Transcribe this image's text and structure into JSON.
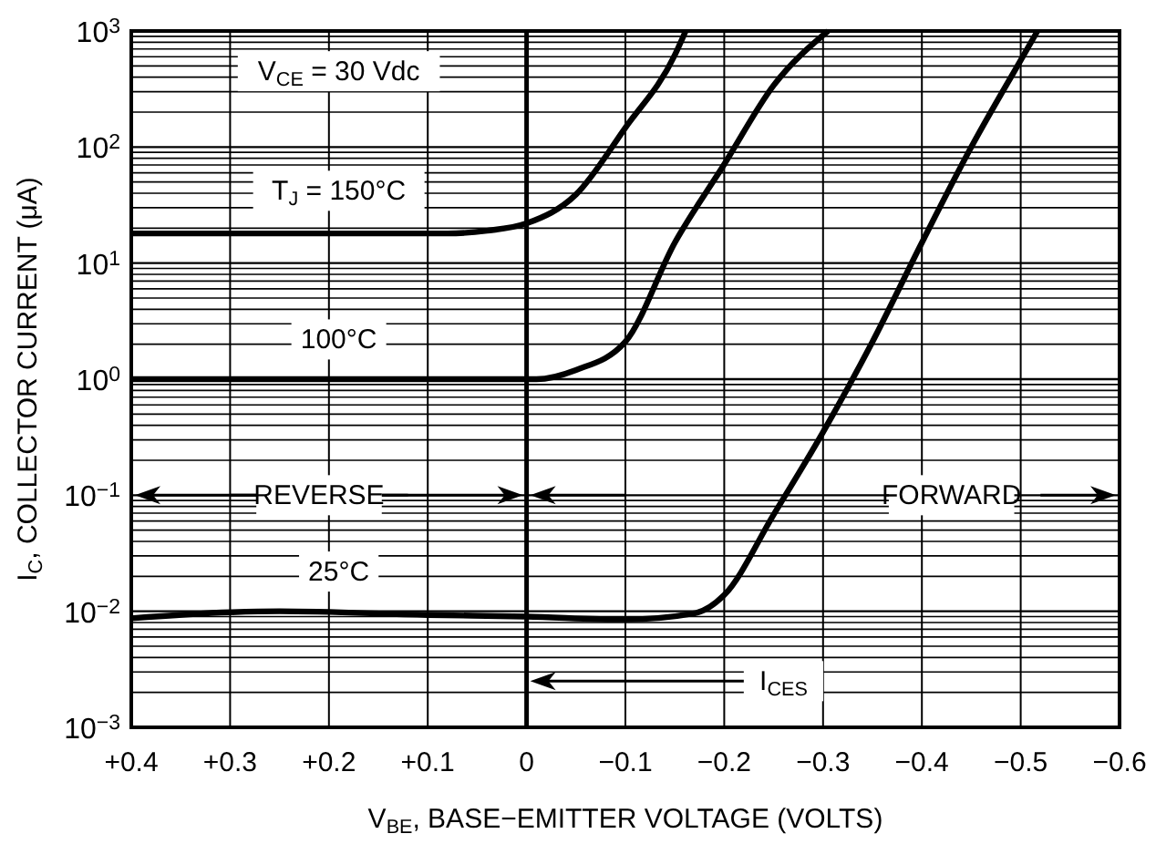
{
  "chart_data": {
    "type": "line",
    "xlabel": "V$_{BE}$, BASE−EMITTER VOLTAGE (VOLTS)",
    "ylabel": "I$_{C}$, COLLECTOR CURRENT (μA)",
    "log": "y",
    "grid": true,
    "line_style": "solid",
    "xlim": [
      0.4,
      -0.6
    ],
    "xticks": [
      {
        "value": 0.4,
        "label": "+0.4"
      },
      {
        "value": 0.3,
        "label": "+0.3"
      },
      {
        "value": 0.2,
        "label": "+0.2"
      },
      {
        "value": 0.1,
        "label": "+0.1"
      },
      0,
      {
        "value": -0.1,
        "label": "−0.1"
      },
      {
        "value": -0.2,
        "label": "−0.2"
      },
      {
        "value": -0.3,
        "label": "−0.3"
      },
      {
        "value": -0.4,
        "label": "−0.4"
      },
      {
        "value": -0.5,
        "label": "−0.5"
      },
      {
        "value": -0.6,
        "label": "−0.6"
      }
    ],
    "ylim": [
      0.001,
      1000
    ],
    "yticks": [
      {
        "value": 0.001,
        "label": "10$^{−3}$"
      },
      {
        "value": 0.01,
        "label": "10$^{−2}$"
      },
      {
        "value": 0.1,
        "label": "10$^{−1}$"
      },
      {
        "value": 1,
        "label": "10$^{0}$"
      },
      {
        "value": 10,
        "label": "10$^{1}$"
      },
      {
        "value": 100,
        "label": "10$^{2}$"
      },
      {
        "value": 1000,
        "label": "10$^{3}$"
      }
    ],
    "series": [
      {
        "name": "T$_{J}$ = 150°C",
        "color": "#000000",
        "x": [
          0.4,
          0.2,
          0.08,
          0.04,
          0,
          -0.05,
          -0.1,
          -0.15,
          -0.161
        ],
        "values": [
          18,
          18,
          18,
          19,
          22,
          39,
          147,
          620,
          1000
        ]
      },
      {
        "name": "100°C",
        "color": "#000000",
        "x": [
          0.4,
          0.2,
          0,
          -0.01,
          -0.05,
          -0.1,
          -0.15,
          -0.2,
          -0.25,
          -0.305
        ],
        "values": [
          1,
          1,
          1,
          1,
          1.2,
          2.1,
          15,
          71,
          340,
          1000
        ]
      },
      {
        "name": "25°C",
        "color": "#000000",
        "x": [
          0.4,
          0.3,
          0.25,
          0.1,
          0,
          -0.1,
          -0.17,
          -0.2,
          -0.25,
          -0.3,
          -0.35,
          -0.4,
          -0.45,
          -0.5,
          -0.517
        ],
        "values": [
          0.0087,
          0.0098,
          0.01,
          0.0093,
          0.009,
          0.0085,
          0.0096,
          0.0138,
          0.068,
          0.35,
          2.1,
          15,
          100,
          560,
          1000
        ]
      }
    ],
    "ref_lines": [
      {
        "axis": "x",
        "value": 0
      }
    ],
    "annotations": [
      "V$_{CE}$ = 30 Vdc",
      "REVERSE",
      "FORWARD",
      "I$_{CES}$"
    ]
  }
}
